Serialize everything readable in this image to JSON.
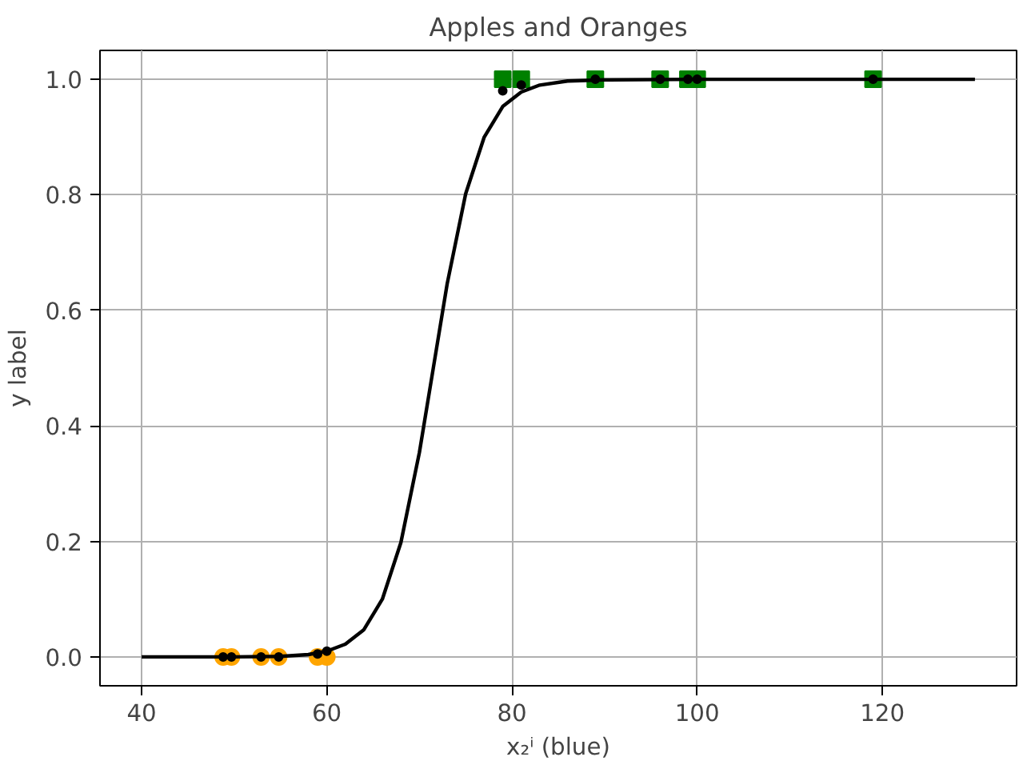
{
  "chart_data": {
    "type": "scatter",
    "title": "Apples and Oranges",
    "xlabel": "x₂ⁱ (blue)",
    "ylabel": "y label",
    "xlim": [
      35.5,
      134.5
    ],
    "ylim": [
      -0.05,
      1.05
    ],
    "xticks": [
      40,
      60,
      80,
      100,
      120
    ],
    "yticks": [
      {
        "value": 0,
        "label": "0.0"
      },
      {
        "value": 0.2,
        "label": "0.2"
      },
      {
        "value": 0.4,
        "label": "0.4"
      },
      {
        "value": 0.6,
        "label": "0.6"
      },
      {
        "value": 0.8,
        "label": "0.8"
      },
      {
        "value": 1,
        "label": "1.0"
      }
    ],
    "grid": true,
    "series": [
      {
        "marker": "circle",
        "color": "#ffa500",
        "x": [
          48.8,
          49.7,
          52.9,
          54.8,
          59,
          60
        ],
        "values": [
          0,
          0,
          0,
          0,
          0,
          0
        ]
      },
      {
        "marker": "square",
        "color": "#008000",
        "x": [
          79,
          81,
          89,
          96,
          99,
          100,
          119
        ],
        "values": [
          1,
          1,
          1,
          1,
          1,
          1,
          1
        ]
      },
      {
        "type": "line",
        "marker": "none",
        "color": "#000000",
        "x": [
          40,
          50,
          55,
          58,
          60,
          62,
          64,
          66,
          68,
          70,
          71.5,
          73,
          75,
          77,
          79,
          81,
          83,
          86,
          90,
          100,
          130
        ],
        "values": [
          0,
          0,
          0.001,
          0.004,
          0.01,
          0.022,
          0.047,
          0.1,
          0.198,
          0.354,
          0.5,
          0.646,
          0.802,
          0.9,
          0.953,
          0.978,
          0.99,
          0.997,
          0.999,
          1,
          1
        ]
      },
      {
        "marker": "circle",
        "color": "#000000",
        "x": [
          48.8,
          49.7,
          52.9,
          54.8,
          59,
          60,
          79,
          81,
          89,
          96,
          99,
          100,
          119
        ],
        "values": [
          0,
          0,
          0,
          0,
          0.005,
          0.01,
          0.98,
          0.99,
          1,
          1,
          1,
          1,
          1
        ]
      }
    ]
  }
}
